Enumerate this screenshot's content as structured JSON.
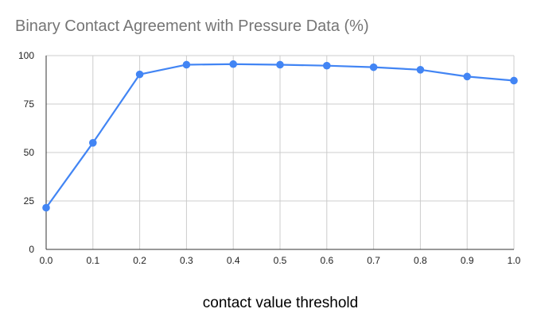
{
  "chart_data": {
    "type": "line",
    "title": "Binary Contact Agreement with Pressure Data (%)",
    "xlabel": "contact value threshold",
    "ylabel": "",
    "x": [
      0.0,
      0.1,
      0.2,
      0.3,
      0.4,
      0.5,
      0.6,
      0.7,
      0.8,
      0.9,
      1.0
    ],
    "x_tick_labels": [
      "0.0",
      "0.1",
      "0.2",
      "0.3",
      "0.4",
      "0.5",
      "0.6",
      "0.7",
      "0.8",
      "0.9",
      "1.0"
    ],
    "y_ticks": [
      0,
      25,
      50,
      75,
      100
    ],
    "xlim": [
      0,
      1
    ],
    "ylim": [
      0,
      100
    ],
    "grid": true,
    "series": [
      {
        "values": [
          21.5,
          55,
          90.3,
          95.3,
          95.6,
          95.3,
          94.8,
          94,
          92.7,
          89.2,
          87.1
        ],
        "color": "#4285F4"
      }
    ]
  }
}
